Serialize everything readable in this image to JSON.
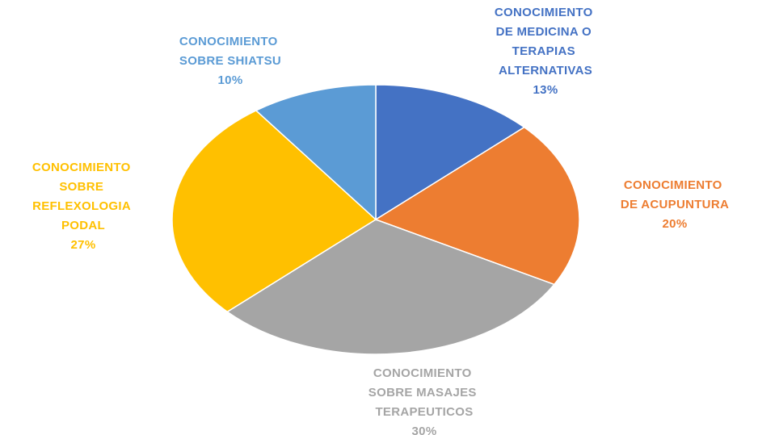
{
  "chart_data": {
    "type": "pie",
    "categories": [
      "CONOCIMIENTO DE MEDICINA O TERAPIAS ALTERNATIVAS",
      "CONOCIMIENTO DE ACUPUNTURA",
      "CONOCIMIENTO SOBRE MASAJES TERAPEUTICOS",
      "CONOCIMIENTO SOBRE REFLEXOLOGIA PODAL",
      "CONOCIMIENTO SOBRE SHIATSU"
    ],
    "values": [
      13,
      20,
      30,
      27,
      10
    ],
    "value_labels": [
      "13%",
      "20%",
      "30%",
      "27%",
      "10%"
    ],
    "colors": [
      "#4472c4",
      "#ed7d31",
      "#a5a5a5",
      "#ffc000",
      "#5b9bd5"
    ]
  }
}
